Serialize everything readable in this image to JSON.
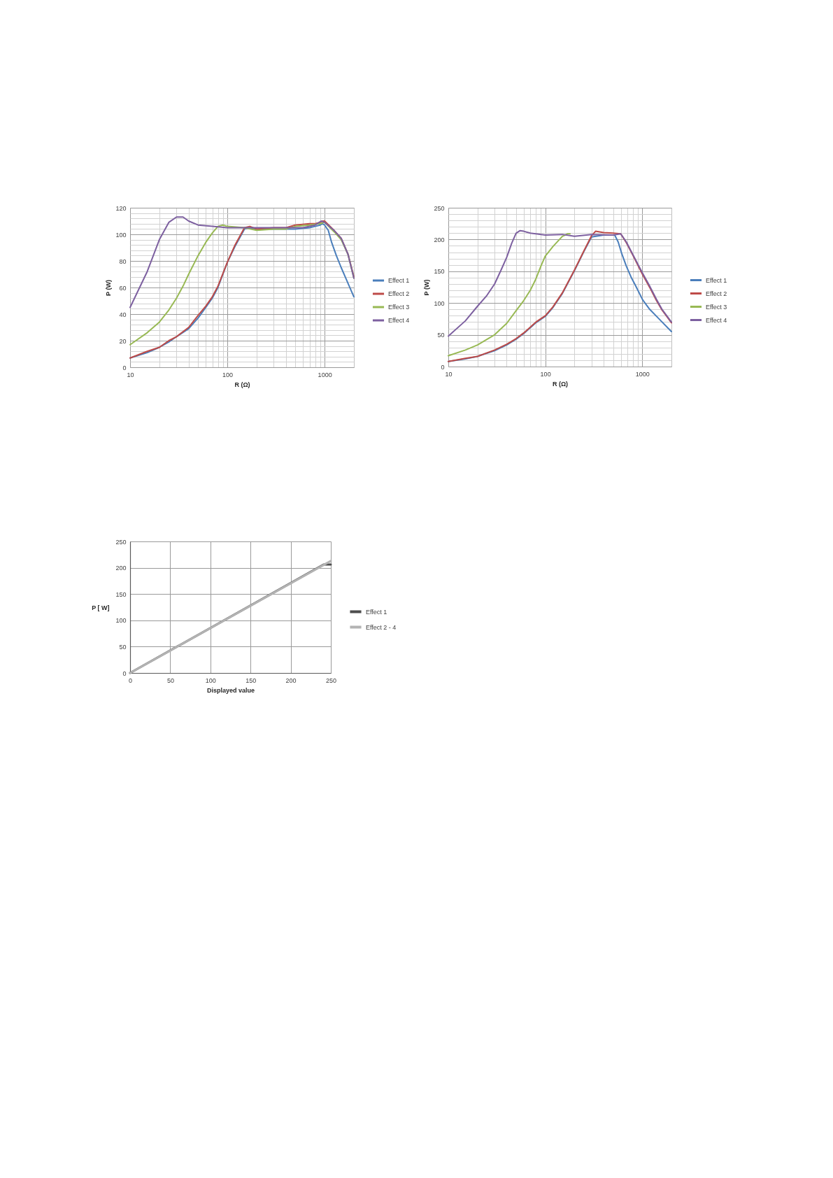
{
  "chart_data": [
    {
      "type": "line",
      "xlabel": "R (Ω)",
      "ylabel": "P (W)",
      "log": "x",
      "xlim": [
        10,
        2000
      ],
      "ylim": [
        0,
        120
      ],
      "xticks": [
        10,
        {
          "value": 20,
          "label": null
        },
        {
          "value": 30,
          "label": null
        },
        {
          "value": 40,
          "label": null
        },
        {
          "value": 50,
          "label": null
        },
        {
          "value": 60,
          "label": null
        },
        {
          "value": 70,
          "label": null
        },
        {
          "value": 80,
          "label": null
        },
        {
          "value": 90,
          "label": null
        },
        100,
        {
          "value": 200,
          "label": null
        },
        {
          "value": 300,
          "label": null
        },
        {
          "value": 400,
          "label": null
        },
        {
          "value": 500,
          "label": null
        },
        {
          "value": 600,
          "label": null
        },
        {
          "value": 700,
          "label": null
        },
        {
          "value": 800,
          "label": null
        },
        {
          "value": 900,
          "label": null
        },
        1000
      ],
      "yticks": [
        0,
        {
          "value": 4,
          "label": null
        },
        {
          "value": 8,
          "label": null
        },
        {
          "value": 12,
          "label": null
        },
        {
          "value": 16,
          "label": null
        },
        20,
        {
          "value": 24,
          "label": null
        },
        {
          "value": 28,
          "label": null
        },
        {
          "value": 32,
          "label": null
        },
        {
          "value": 36,
          "label": null
        },
        40,
        {
          "value": 44,
          "label": null
        },
        {
          "value": 48,
          "label": null
        },
        {
          "value": 52,
          "label": null
        },
        {
          "value": 56,
          "label": null
        },
        60,
        {
          "value": 64,
          "label": null
        },
        {
          "value": 68,
          "label": null
        },
        {
          "value": 72,
          "label": null
        },
        {
          "value": 76,
          "label": null
        },
        80,
        {
          "value": 84,
          "label": null
        },
        {
          "value": 88,
          "label": null
        },
        {
          "value": 92,
          "label": null
        },
        {
          "value": 96,
          "label": null
        },
        100,
        {
          "value": 104,
          "label": null
        },
        {
          "value": 108,
          "label": null
        },
        {
          "value": 112,
          "label": null
        },
        {
          "value": 116,
          "label": null
        },
        120
      ],
      "grid": true,
      "legend": "right",
      "series": [
        {
          "name": "Effect 1",
          "color": "#4a7ebb",
          "x": [
            10,
            15,
            20,
            25,
            30,
            40,
            50,
            60,
            70,
            80,
            100,
            120,
            150,
            170,
            200,
            300,
            500,
            700,
            800,
            900,
            950,
            1000,
            1090,
            1180,
            1320,
            1480,
            1650,
            1840,
            2000
          ],
          "values": [
            7,
            11,
            15,
            19,
            23,
            29,
            37,
            45,
            52,
            60,
            79,
            91,
            104,
            105,
            104,
            104,
            104,
            105,
            106,
            107,
            108,
            107,
            103,
            94,
            84,
            75,
            67,
            59,
            53
          ]
        },
        {
          "name": "Effect 2",
          "color": "#be4b48",
          "x": [
            10,
            15,
            20,
            25,
            30,
            40,
            50,
            60,
            70,
            80,
            100,
            120,
            150,
            170,
            200,
            300,
            400,
            500,
            700,
            800,
            900,
            950,
            1000,
            1250,
            1480,
            1740,
            2000
          ],
          "values": [
            7,
            12,
            15,
            20,
            23,
            30,
            39,
            46,
            53,
            61,
            79,
            92,
            105,
            106,
            104,
            105,
            105,
            107,
            108,
            108,
            109,
            110,
            110,
            103,
            97,
            85,
            68
          ]
        },
        {
          "name": "Effect 3",
          "color": "#98b954",
          "x": [
            10,
            15,
            20,
            25,
            30,
            35,
            40,
            50,
            60,
            70,
            80,
            90,
            100,
            150,
            200,
            300,
            400,
            500,
            700,
            900,
            1000,
            1250,
            1480,
            1740,
            2000
          ],
          "values": [
            17,
            26,
            34,
            43,
            52,
            61,
            70,
            84,
            94,
            101,
            106,
            107,
            106,
            105,
            103,
            104,
            104,
            106,
            107,
            108,
            109,
            102,
            96,
            85,
            67
          ]
        },
        {
          "name": "Effect 4",
          "color": "#7d60a0",
          "x": [
            10,
            15,
            20,
            25,
            30,
            35,
            40,
            50,
            70,
            100,
            200,
            500,
            600,
            800,
            920,
            1000,
            1250,
            1480,
            1740,
            2000
          ],
          "values": [
            45,
            72,
            96,
            109,
            113,
            113,
            110,
            107,
            106,
            105,
            105,
            105,
            105,
            107,
            110,
            109,
            103,
            97,
            85,
            67
          ]
        }
      ]
    },
    {
      "type": "line",
      "xlabel": "R (Ω)",
      "ylabel": "P (W)",
      "log": "x",
      "xlim": [
        10,
        2000
      ],
      "ylim": [
        0,
        250
      ],
      "xticks": [
        10,
        {
          "value": 20,
          "label": null
        },
        {
          "value": 30,
          "label": null
        },
        {
          "value": 40,
          "label": null
        },
        {
          "value": 50,
          "label": null
        },
        {
          "value": 60,
          "label": null
        },
        {
          "value": 70,
          "label": null
        },
        {
          "value": 80,
          "label": null
        },
        {
          "value": 90,
          "label": null
        },
        100,
        {
          "value": 200,
          "label": null
        },
        {
          "value": 300,
          "label": null
        },
        {
          "value": 400,
          "label": null
        },
        {
          "value": 500,
          "label": null
        },
        {
          "value": 600,
          "label": null
        },
        {
          "value": 700,
          "label": null
        },
        {
          "value": 800,
          "label": null
        },
        {
          "value": 900,
          "label": null
        },
        1000
      ],
      "yticks": [
        0,
        {
          "value": 10,
          "label": null
        },
        {
          "value": 20,
          "label": null
        },
        {
          "value": 30,
          "label": null
        },
        {
          "value": 40,
          "label": null
        },
        50,
        {
          "value": 60,
          "label": null
        },
        {
          "value": 70,
          "label": null
        },
        {
          "value": 80,
          "label": null
        },
        {
          "value": 90,
          "label": null
        },
        100,
        {
          "value": 110,
          "label": null
        },
        {
          "value": 120,
          "label": null
        },
        {
          "value": 130,
          "label": null
        },
        {
          "value": 140,
          "label": null
        },
        150,
        {
          "value": 160,
          "label": null
        },
        {
          "value": 170,
          "label": null
        },
        {
          "value": 180,
          "label": null
        },
        {
          "value": 190,
          "label": null
        },
        200,
        {
          "value": 210,
          "label": null
        },
        {
          "value": 220,
          "label": null
        },
        {
          "value": 230,
          "label": null
        },
        {
          "value": 240,
          "label": null
        },
        250
      ],
      "grid": true,
      "legend": "right",
      "series": [
        {
          "name": "Effect 1",
          "color": "#4a7ebb",
          "x": [
            10,
            15,
            20,
            30,
            40,
            50,
            60,
            70,
            80,
            100,
            120,
            150,
            200,
            250,
            300,
            400,
            520,
            565,
            614,
            686,
            766,
            856,
            1010,
            1195,
            1490,
            2000
          ],
          "values": [
            8,
            12,
            16,
            25,
            34,
            43,
            52,
            61,
            69,
            79,
            93,
            115,
            151,
            181,
            204,
            207,
            207,
            196,
            178,
            158,
            141,
            127,
            105,
            90,
            75,
            55
          ]
        },
        {
          "name": "Effect 2",
          "color": "#be4b48",
          "x": [
            10,
            15,
            20,
            30,
            40,
            50,
            60,
            70,
            80,
            100,
            120,
            150,
            200,
            250,
            300,
            330,
            400,
            500,
            600,
            686,
            809,
            1000,
            1200,
            1400,
            1600,
            2000
          ],
          "values": [
            8,
            13,
            16,
            26,
            35,
            44,
            53,
            62,
            70,
            80,
            94,
            116,
            152,
            182,
            206,
            213,
            211,
            210,
            209,
            195,
            174,
            146,
            124,
            104,
            89,
            69
          ]
        },
        {
          "name": "Effect 3",
          "color": "#98b954",
          "x": [
            10,
            15,
            20,
            30,
            40,
            50,
            60,
            70,
            80,
            90,
            100,
            120,
            150,
            170,
            180
          ],
          "values": [
            17,
            26,
            34,
            50,
            68,
            88,
            104,
            120,
            138,
            158,
            174,
            189,
            205,
            209,
            209
          ]
        },
        {
          "name": "Effect 4",
          "color": "#7d60a0",
          "x": [
            10,
            15,
            20,
            25,
            30,
            35,
            40,
            45,
            50,
            55,
            60,
            70,
            80,
            100,
            150,
            200,
            300,
            500,
            600,
            686,
            809,
            1000,
            1200,
            1400,
            1600,
            2000
          ],
          "values": [
            48,
            72,
            95,
            112,
            130,
            152,
            172,
            194,
            210,
            214,
            213,
            210,
            209,
            207,
            208,
            205,
            208,
            207,
            209,
            196,
            175,
            148,
            126,
            106,
            90,
            70
          ]
        }
      ]
    },
    {
      "type": "line",
      "xlabel": "Displayed value",
      "ylabel": "P [ W]",
      "xlim": [
        0,
        250
      ],
      "ylim": [
        0,
        250
      ],
      "xticks": [
        0,
        50,
        100,
        150,
        200,
        250
      ],
      "yticks": [
        0,
        50,
        100,
        150,
        200,
        250
      ],
      "grid": true,
      "legend": "right",
      "series": [
        {
          "name": "Effect 1",
          "color": "#4d4d4d",
          "x": [
            0,
            241,
            250
          ],
          "values": [
            0,
            206,
            206
          ]
        },
        {
          "name": "Effect 2 - 4",
          "color": "#b3b3b3",
          "x": [
            0,
            250
          ],
          "values": [
            0,
            213
          ]
        }
      ]
    }
  ]
}
